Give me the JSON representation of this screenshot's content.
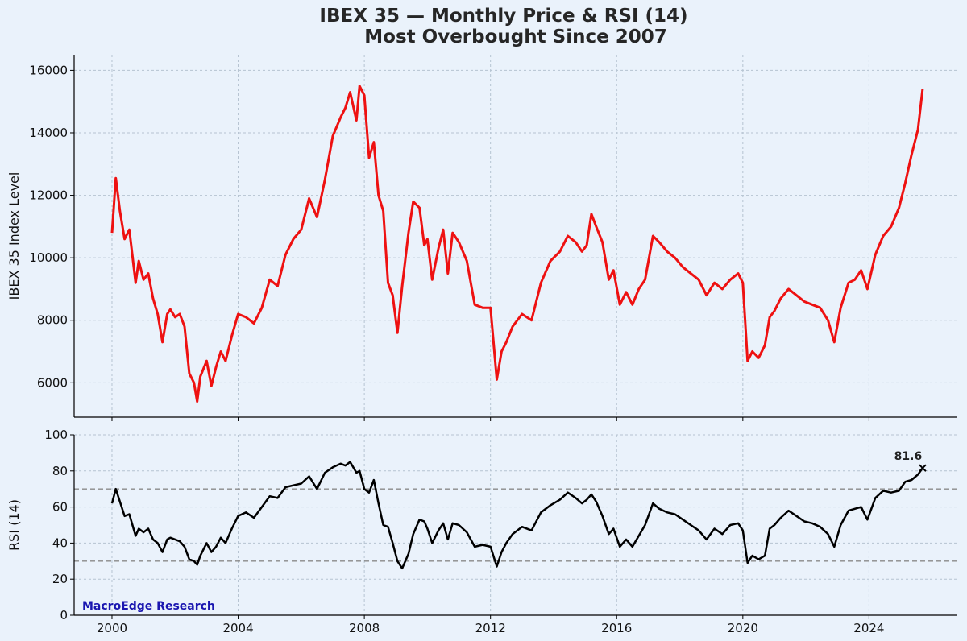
{
  "colors": {
    "background": "#eaf2fb",
    "price_line": "#ee1111",
    "rsi_line": "#000000",
    "grid": "#b5c3d1",
    "threshold": "#8a8a8a",
    "watermark": "#1a16b0"
  },
  "watermark": "MacroEdge Research",
  "chart_data": [
    {
      "type": "line",
      "title": "IBEX 35 — Monthly Price & RSI (14)",
      "subtitle": "Most Overbought Since 2007",
      "xlabel": "",
      "ylabel": "IBEX 35 Index Level",
      "xlim": [
        1998.8,
        2026.8
      ],
      "ylim": [
        4900,
        16500
      ],
      "x_ticks": [
        2000,
        2004,
        2008,
        2012,
        2016,
        2020,
        2024
      ],
      "x_tick_labels": [
        "2000",
        "2004",
        "2008",
        "2012",
        "2016",
        "2020",
        "2024"
      ],
      "y_ticks": [
        6000,
        8000,
        10000,
        12000,
        14000,
        16000
      ],
      "y_tick_labels": [
        "6000",
        "8000",
        "10000",
        "12000",
        "14000",
        "16000"
      ],
      "grid": true,
      "series": [
        {
          "x": [
            2000.0,
            2000.12,
            2000.25,
            2000.4,
            2000.55,
            2000.75,
            2000.85,
            2001.0,
            2001.15,
            2001.3,
            2001.45,
            2001.6,
            2001.75,
            2001.85,
            2002.0,
            2002.15,
            2002.3,
            2002.45,
            2002.6,
            2002.7,
            2002.8,
            2003.0,
            2003.15,
            2003.3,
            2003.45,
            2003.6,
            2003.8,
            2004.0,
            2004.25,
            2004.5,
            2004.75,
            2005.0,
            2005.25,
            2005.5,
            2005.75,
            2006.0,
            2006.25,
            2006.5,
            2006.75,
            2007.0,
            2007.25,
            2007.4,
            2007.55,
            2007.75,
            2007.85,
            2008.0,
            2008.15,
            2008.3,
            2008.45,
            2008.6,
            2008.75,
            2008.9,
            2009.05,
            2009.2,
            2009.4,
            2009.55,
            2009.75,
            2009.9,
            2010.0,
            2010.15,
            2010.35,
            2010.5,
            2010.65,
            2010.8,
            2011.0,
            2011.25,
            2011.5,
            2011.75,
            2012.0,
            2012.2,
            2012.35,
            2012.5,
            2012.7,
            2013.0,
            2013.3,
            2013.6,
            2013.9,
            2014.2,
            2014.45,
            2014.7,
            2014.9,
            2015.05,
            2015.2,
            2015.35,
            2015.55,
            2015.75,
            2015.9,
            2016.1,
            2016.3,
            2016.5,
            2016.7,
            2016.9,
            2017.15,
            2017.35,
            2017.6,
            2017.85,
            2018.1,
            2018.35,
            2018.6,
            2018.85,
            2019.1,
            2019.35,
            2019.6,
            2019.85,
            2020.0,
            2020.15,
            2020.3,
            2020.5,
            2020.7,
            2020.85,
            2021.0,
            2021.2,
            2021.45,
            2021.7,
            2021.95,
            2022.2,
            2022.45,
            2022.7,
            2022.9,
            2023.1,
            2023.35,
            2023.55,
            2023.75,
            2023.95,
            2024.2,
            2024.45,
            2024.7,
            2024.95,
            2025.15,
            2025.35,
            2025.55,
            2025.7
          ],
          "y": [
            10800,
            12550,
            11500,
            10600,
            10900,
            9200,
            9900,
            9300,
            9500,
            8700,
            8200,
            7300,
            8200,
            8350,
            8100,
            8200,
            7800,
            6300,
            6000,
            5400,
            6200,
            6700,
            5900,
            6500,
            7000,
            6700,
            7500,
            8200,
            8100,
            7900,
            8400,
            9300,
            9100,
            10100,
            10600,
            10900,
            11900,
            11300,
            12500,
            13900,
            14500,
            14800,
            15300,
            14400,
            15500,
            15200,
            13200,
            13700,
            12000,
            11500,
            9200,
            8800,
            7600,
            9100,
            10800,
            11800,
            11600,
            10400,
            10600,
            9300,
            10300,
            10900,
            9500,
            10800,
            10500,
            9900,
            8500,
            8400,
            8400,
            6100,
            7000,
            7300,
            7800,
            8200,
            8000,
            9200,
            9900,
            10200,
            10700,
            10500,
            10200,
            10400,
            11400,
            11000,
            10500,
            9300,
            9600,
            8500,
            8900,
            8500,
            9000,
            9300,
            10700,
            10500,
            10200,
            10000,
            9700,
            9500,
            9300,
            8800,
            9200,
            9000,
            9300,
            9500,
            9200,
            6700,
            7000,
            6800,
            7200,
            8100,
            8300,
            8700,
            9000,
            8800,
            8600,
            8500,
            8400,
            8000,
            7300,
            8400,
            9200,
            9300,
            9600,
            9000,
            10100,
            10700,
            11000,
            11600,
            12400,
            13300,
            14100,
            15400
          ]
        }
      ]
    },
    {
      "type": "line",
      "xlabel": "",
      "ylabel": "RSI (14)",
      "xlim": [
        1998.8,
        2026.8
      ],
      "ylim": [
        0,
        100
      ],
      "x_ticks": [
        2000,
        2004,
        2008,
        2012,
        2016,
        2020,
        2024
      ],
      "x_tick_labels": [
        "2000",
        "2004",
        "2008",
        "2012",
        "2016",
        "2020",
        "2024"
      ],
      "y_ticks": [
        0,
        20,
        40,
        60,
        80,
        100
      ],
      "y_tick_labels": [
        "0",
        "20",
        "40",
        "60",
        "80",
        "100"
      ],
      "grid": true,
      "thresholds": [
        70,
        30
      ],
      "last_value_label": "81.6",
      "series": [
        {
          "x": [
            2000.0,
            2000.12,
            2000.25,
            2000.4,
            2000.55,
            2000.75,
            2000.85,
            2001.0,
            2001.15,
            2001.3,
            2001.45,
            2001.6,
            2001.75,
            2001.85,
            2002.0,
            2002.15,
            2002.3,
            2002.45,
            2002.6,
            2002.7,
            2002.8,
            2003.0,
            2003.15,
            2003.3,
            2003.45,
            2003.6,
            2003.8,
            2004.0,
            2004.25,
            2004.5,
            2004.75,
            2005.0,
            2005.25,
            2005.5,
            2005.75,
            2006.0,
            2006.25,
            2006.5,
            2006.75,
            2007.0,
            2007.25,
            2007.4,
            2007.55,
            2007.75,
            2007.85,
            2008.0,
            2008.15,
            2008.3,
            2008.45,
            2008.6,
            2008.75,
            2008.9,
            2009.05,
            2009.2,
            2009.4,
            2009.55,
            2009.75,
            2009.9,
            2010.0,
            2010.15,
            2010.35,
            2010.5,
            2010.65,
            2010.8,
            2011.0,
            2011.25,
            2011.5,
            2011.75,
            2012.0,
            2012.2,
            2012.35,
            2012.5,
            2012.7,
            2013.0,
            2013.3,
            2013.6,
            2013.9,
            2014.2,
            2014.45,
            2014.7,
            2014.9,
            2015.05,
            2015.2,
            2015.35,
            2015.55,
            2015.75,
            2015.9,
            2016.1,
            2016.3,
            2016.5,
            2016.7,
            2016.9,
            2017.15,
            2017.35,
            2017.6,
            2017.85,
            2018.1,
            2018.35,
            2018.6,
            2018.85,
            2019.1,
            2019.35,
            2019.6,
            2019.85,
            2020.0,
            2020.15,
            2020.3,
            2020.5,
            2020.7,
            2020.85,
            2021.0,
            2021.2,
            2021.45,
            2021.7,
            2021.95,
            2022.2,
            2022.45,
            2022.7,
            2022.9,
            2023.1,
            2023.35,
            2023.55,
            2023.75,
            2023.95,
            2024.2,
            2024.45,
            2024.7,
            2024.95,
            2025.15,
            2025.35,
            2025.55,
            2025.7
          ],
          "y": [
            62,
            70,
            63,
            55,
            56,
            44,
            48,
            46,
            48,
            42,
            40,
            35,
            42,
            43,
            42,
            41,
            38,
            31,
            30,
            28,
            33,
            40,
            35,
            38,
            43,
            40,
            48,
            55,
            57,
            54,
            60,
            66,
            65,
            71,
            72,
            73,
            77,
            70,
            79,
            82,
            84,
            83,
            85,
            79,
            80,
            70,
            68,
            75,
            62,
            50,
            49,
            40,
            30,
            26,
            34,
            45,
            53,
            52,
            48,
            40,
            47,
            51,
            42,
            51,
            50,
            46,
            38,
            39,
            38,
            27,
            35,
            40,
            45,
            49,
            47,
            57,
            61,
            64,
            68,
            65,
            62,
            64,
            67,
            63,
            55,
            45,
            48,
            38,
            42,
            38,
            44,
            50,
            62,
            59,
            57,
            56,
            53,
            50,
            47,
            42,
            48,
            45,
            50,
            51,
            47,
            29,
            33,
            31,
            33,
            48,
            50,
            54,
            58,
            55,
            52,
            51,
            49,
            45,
            38,
            50,
            58,
            59,
            60,
            53,
            65,
            69,
            68,
            69,
            74,
            75,
            78,
            81.6
          ]
        }
      ]
    }
  ]
}
